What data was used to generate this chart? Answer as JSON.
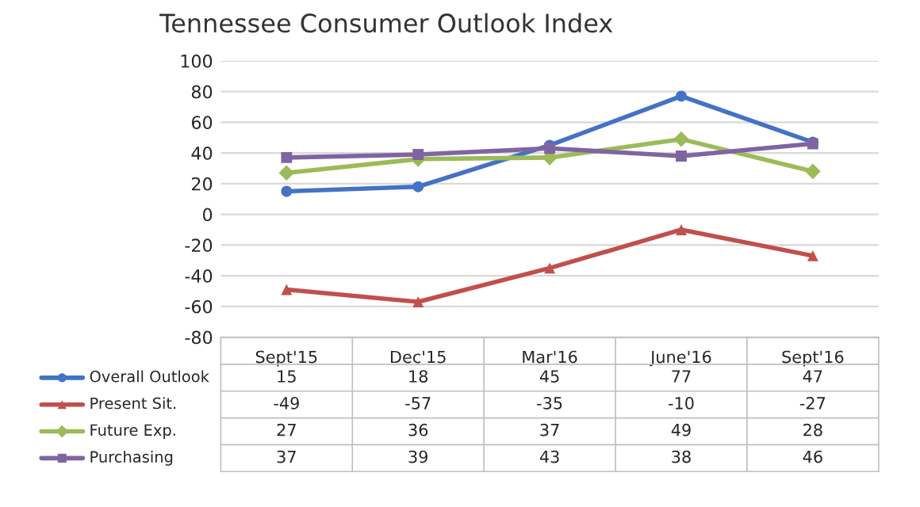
{
  "chart_data": {
    "type": "line",
    "title": "Tennessee Consumer Outlook Index",
    "categories": [
      "Sept'15",
      "Dec'15",
      "Mar'16",
      "June'16",
      "Sept'16"
    ],
    "series": [
      {
        "name": "Overall Outlook",
        "color": "#4472c4",
        "marker": "circle",
        "values": [
          15,
          18,
          45,
          77,
          47
        ]
      },
      {
        "name": "Present Sit.",
        "color": "#c0504d",
        "marker": "triangle",
        "values": [
          -49,
          -57,
          -35,
          -10,
          -27
        ]
      },
      {
        "name": "Future Exp.",
        "color": "#9bbb59",
        "marker": "diamond",
        "values": [
          27,
          36,
          37,
          49,
          28
        ]
      },
      {
        "name": "Purchasing",
        "color": "#8064a2",
        "marker": "square",
        "values": [
          37,
          39,
          43,
          38,
          46
        ]
      }
    ],
    "ylim": [
      -80,
      100
    ],
    "yticks": [
      -80,
      -60,
      -40,
      -20,
      0,
      20,
      40,
      60,
      80,
      100
    ],
    "grid": "y",
    "legend": "bottom",
    "data_labels": true,
    "line_style": "solid"
  }
}
